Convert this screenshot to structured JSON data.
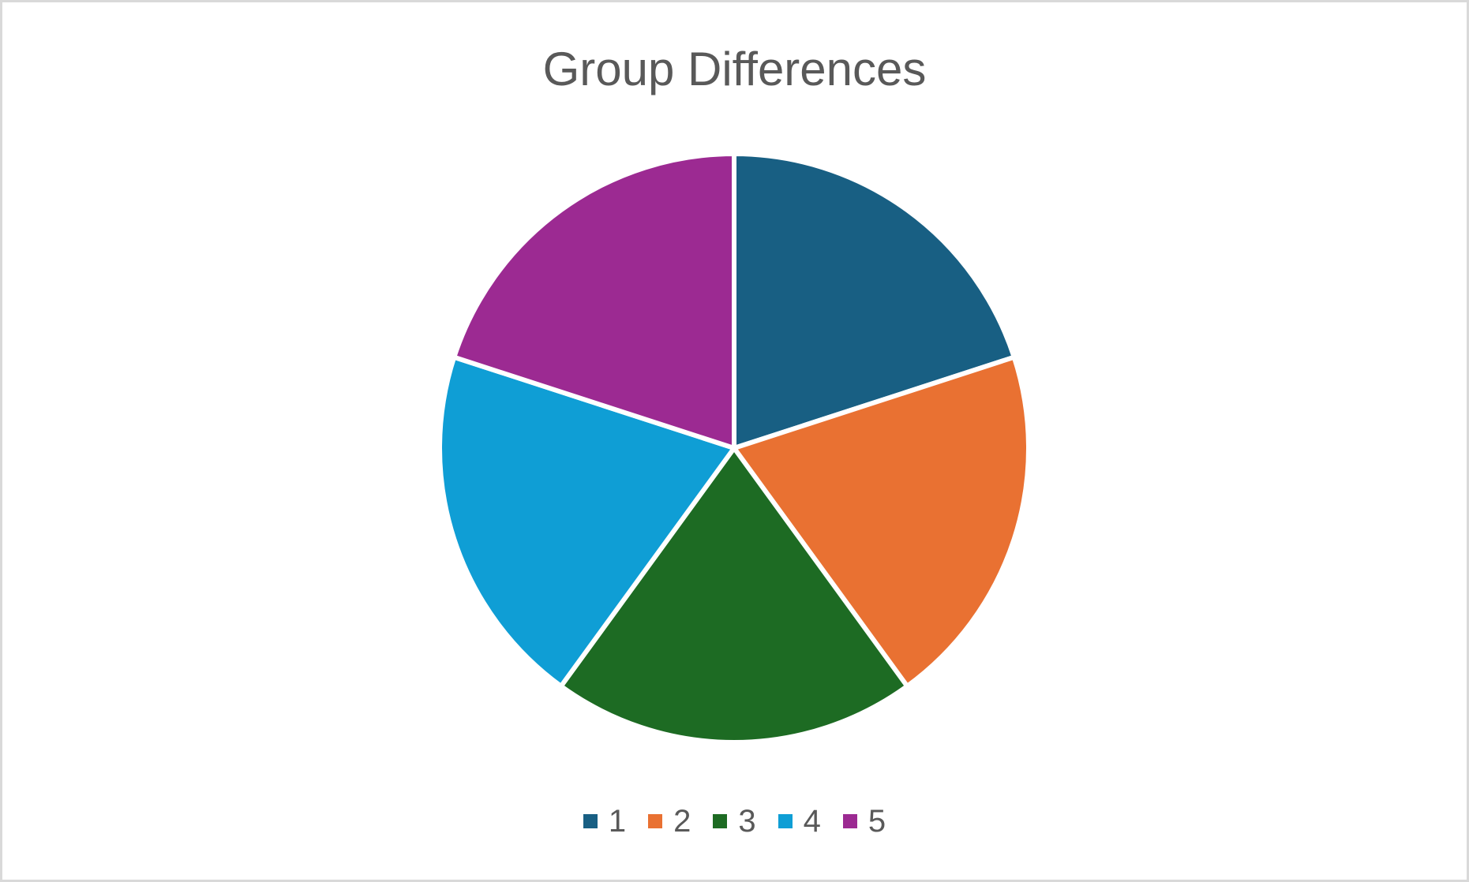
{
  "chart_data": {
    "type": "pie",
    "title": "Group Differences",
    "categories": [
      "1",
      "2",
      "3",
      "4",
      "5"
    ],
    "values": [
      20,
      20,
      20,
      20,
      20
    ],
    "colors": [
      "#185f83",
      "#e97132",
      "#1d6b23",
      "#0f9ed5",
      "#9c2a92"
    ],
    "legend_position": "bottom",
    "start_angle": "12 o'clock",
    "direction": "clockwise"
  }
}
